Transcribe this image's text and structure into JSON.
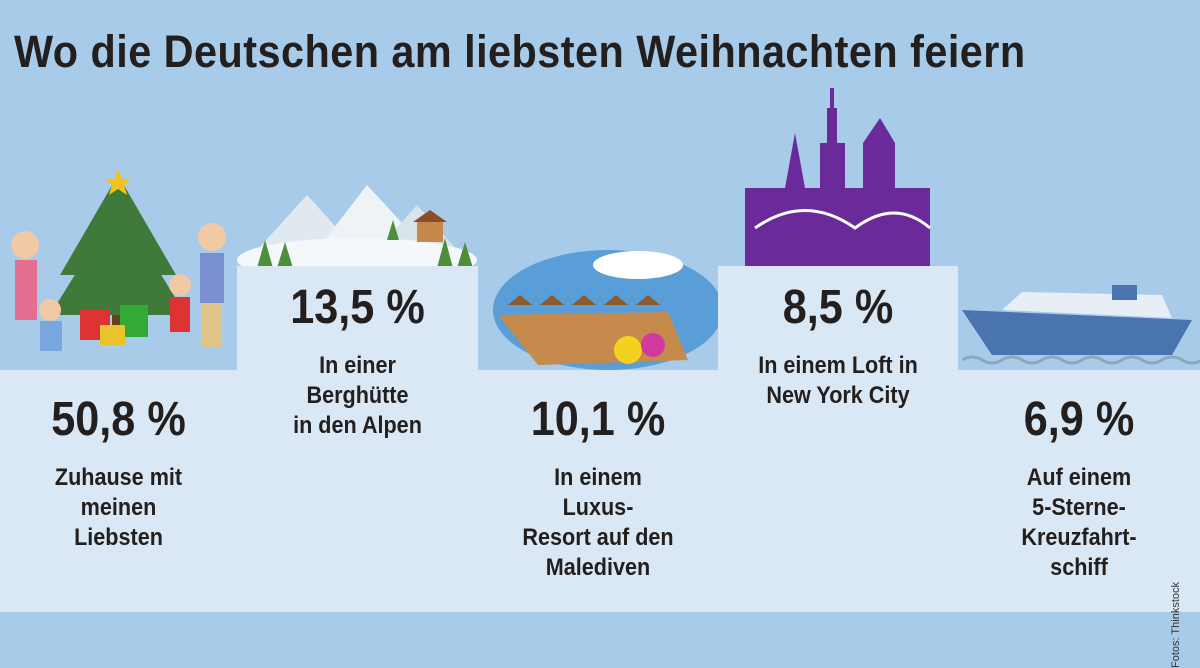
{
  "title": "Wo die Deutschen am liebsten Weihnachten feiern",
  "credit": "Fotos: Thinkstock",
  "colors": {
    "background": "#a8cbe9",
    "panel": "#dae8f5",
    "text": "#231f1e",
    "skyline": "#6a2a9a",
    "ship": "#4a74b0"
  },
  "chart_data": {
    "type": "bar",
    "categories": [
      "Zuhause mit meinen Liebsten",
      "In einer Berghütte in den Alpen",
      "In einem Luxus-Resort auf den Malediven",
      "In einem Loft in New York City",
      "Auf einem 5-Sterne-Kreuzfahrtschiff"
    ],
    "values": [
      50.8,
      13.5,
      10.1,
      8.5,
      6.9
    ],
    "unit": "%",
    "title": "Wo die Deutschen am liebsten Weihnachten feiern"
  },
  "items": [
    {
      "value": "50,8 %",
      "label": [
        "Zuhause mit",
        "meinen",
        "Liebsten"
      ],
      "icon": "family-christmas-tree"
    },
    {
      "value": "13,5 %",
      "label": [
        "In einer",
        "Berghütte",
        "in den Alpen"
      ],
      "icon": "alpine-hut"
    },
    {
      "value": "10,1 %",
      "label": [
        "In einem",
        "Luxus-",
        "Resort auf den",
        "Malediven"
      ],
      "icon": "maldives-resort"
    },
    {
      "value": "8,5 %",
      "label": [
        "In einem Loft in",
        "New York City"
      ],
      "icon": "new-york-skyline"
    },
    {
      "value": "6,9 %",
      "label": [
        "Auf einem",
        "5-Sterne-",
        "Kreuzfahrt-",
        "schiff"
      ],
      "icon": "cruise-ship"
    }
  ]
}
